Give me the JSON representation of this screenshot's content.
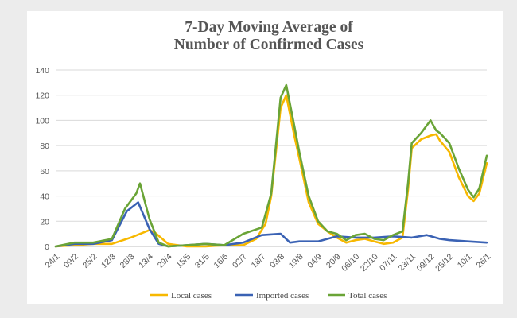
{
  "chart_data": {
    "type": "line",
    "title_lines": [
      "7-Day Moving Average of",
      "Number of Confirmed Cases"
    ],
    "xlabel": "",
    "ylabel": "",
    "ylim": [
      0,
      140
    ],
    "yticks": [
      0,
      20,
      40,
      60,
      80,
      100,
      120,
      140
    ],
    "grid": true,
    "legend": "bottom",
    "x_tick_labels": [
      "24/1",
      "09/2",
      "25/2",
      "12/3",
      "28/3",
      "13/4",
      "29/4",
      "15/5",
      "31/5",
      "16/6",
      "02/7",
      "18/7",
      "03/8",
      "19/8",
      "04/9",
      "20/9",
      "06/10",
      "22/10",
      "07/11",
      "23/11",
      "09/12",
      "25/12",
      "10/1",
      "26/1"
    ],
    "series": [
      {
        "name": "Local cases",
        "color": "#f7b800",
        "points": [
          [
            0,
            0
          ],
          [
            1,
            1
          ],
          [
            2,
            2
          ],
          [
            3,
            2
          ],
          [
            4,
            7
          ],
          [
            5,
            13
          ],
          [
            5.3,
            11
          ],
          [
            6,
            2
          ],
          [
            7,
            0
          ],
          [
            8,
            0
          ],
          [
            9,
            1
          ],
          [
            10,
            1
          ],
          [
            10.7,
            6
          ],
          [
            11.2,
            18
          ],
          [
            11.5,
            40
          ],
          [
            12,
            110
          ],
          [
            12.3,
            120
          ],
          [
            12.7,
            90
          ],
          [
            13,
            70
          ],
          [
            13.5,
            35
          ],
          [
            14,
            18
          ],
          [
            14.5,
            12
          ],
          [
            15,
            7
          ],
          [
            15.5,
            3
          ],
          [
            16,
            5
          ],
          [
            16.5,
            6
          ],
          [
            17,
            4
          ],
          [
            17.5,
            2
          ],
          [
            18,
            3
          ],
          [
            18.5,
            7
          ],
          [
            18.8,
            45
          ],
          [
            19,
            78
          ],
          [
            19.5,
            85
          ],
          [
            20,
            88
          ],
          [
            20.3,
            89
          ],
          [
            20.5,
            84
          ],
          [
            21,
            75
          ],
          [
            21.5,
            55
          ],
          [
            22,
            40
          ],
          [
            22.3,
            36
          ],
          [
            22.6,
            42
          ],
          [
            23,
            66
          ]
        ]
      },
      {
        "name": "Imported cases",
        "color": "#3a62b4",
        "points": [
          [
            0,
            0
          ],
          [
            1,
            2
          ],
          [
            2,
            2
          ],
          [
            3,
            5
          ],
          [
            3.8,
            28
          ],
          [
            4.4,
            35
          ],
          [
            5,
            14
          ],
          [
            5.5,
            2
          ],
          [
            6,
            0
          ],
          [
            7,
            1
          ],
          [
            8,
            2
          ],
          [
            9,
            1
          ],
          [
            10,
            3
          ],
          [
            11,
            9
          ],
          [
            12,
            10
          ],
          [
            12.5,
            3
          ],
          [
            13,
            4
          ],
          [
            14,
            4
          ],
          [
            15,
            8
          ],
          [
            16,
            7
          ],
          [
            17,
            7
          ],
          [
            18,
            8
          ],
          [
            19,
            7
          ],
          [
            19.8,
            9
          ],
          [
            20.5,
            6
          ],
          [
            21,
            5
          ],
          [
            22,
            4
          ],
          [
            23,
            3
          ]
        ]
      },
      {
        "name": "Total cases",
        "color": "#6aa437",
        "points": [
          [
            0,
            0
          ],
          [
            1,
            3
          ],
          [
            2,
            3
          ],
          [
            3,
            6
          ],
          [
            3.7,
            30
          ],
          [
            4.3,
            42
          ],
          [
            4.5,
            50
          ],
          [
            5,
            22
          ],
          [
            5.5,
            3
          ],
          [
            6,
            0
          ],
          [
            7,
            1
          ],
          [
            8,
            2
          ],
          [
            9,
            1
          ],
          [
            10,
            10
          ],
          [
            11,
            15
          ],
          [
            11.5,
            42
          ],
          [
            12,
            118
          ],
          [
            12.3,
            128
          ],
          [
            12.7,
            98
          ],
          [
            13,
            75
          ],
          [
            13.5,
            40
          ],
          [
            14,
            20
          ],
          [
            14.5,
            12
          ],
          [
            15,
            10
          ],
          [
            15.5,
            5
          ],
          [
            16,
            9
          ],
          [
            16.5,
            10
          ],
          [
            17,
            6
          ],
          [
            17.5,
            5
          ],
          [
            18,
            9
          ],
          [
            18.5,
            12
          ],
          [
            18.8,
            50
          ],
          [
            19,
            82
          ],
          [
            19.5,
            90
          ],
          [
            20,
            100
          ],
          [
            20.3,
            92
          ],
          [
            20.5,
            90
          ],
          [
            21,
            82
          ],
          [
            21.5,
            62
          ],
          [
            22,
            45
          ],
          [
            22.3,
            39
          ],
          [
            22.6,
            46
          ],
          [
            23,
            72
          ]
        ]
      }
    ]
  }
}
